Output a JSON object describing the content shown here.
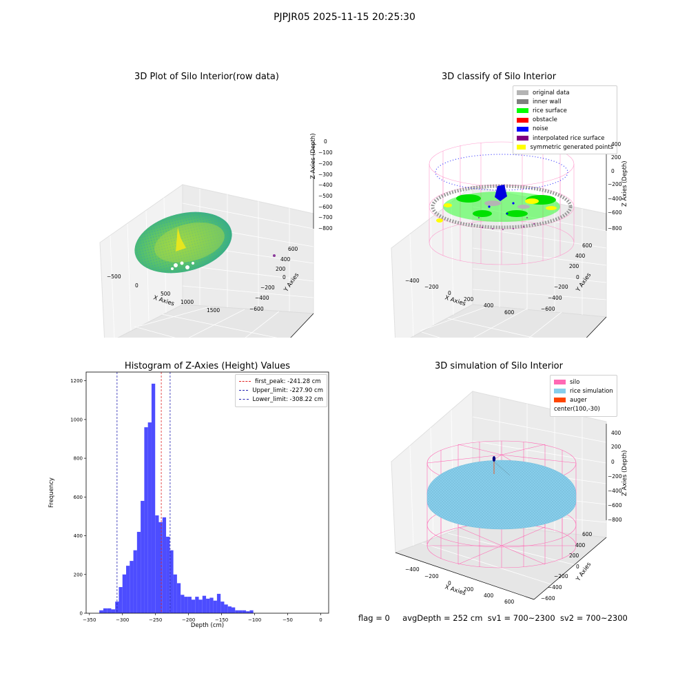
{
  "figure_title": "PJPJR05 2025-11-15 20:25:30",
  "footer": {
    "flag": "flag = 0",
    "avg_depth": "avgDepth = 252 cm",
    "sv1": "sv1 = 700~2300",
    "sv2": "sv2 = 700~2300"
  },
  "colors": {
    "histogram_bar": "#4d4dff",
    "first_peak_line": "#e02020",
    "limit_lines": "#2020b0",
    "silo": "#ff69b4",
    "rice_simulation": "#87ceeb",
    "auger": "#ff4500",
    "rice_surface": "#00ff00",
    "noise": "#0000ff"
  },
  "chart_data": [
    {
      "type": "scatter3d",
      "title": "3D Plot of Silo Interior(row data)",
      "xlabel": "X Axies",
      "ylabel": "Y Axies",
      "zlabel": "Z Axies (Depth)",
      "x_ticks": [
        "−500",
        "0",
        "500",
        "1000",
        "1500"
      ],
      "y_ticks": [
        "−600",
        "−400",
        "−200",
        "0",
        "200",
        "400",
        "600"
      ],
      "z_ticks": [
        "0",
        "−100",
        "−200",
        "−300",
        "−400",
        "−500",
        "−600",
        "−700",
        "−800"
      ]
    },
    {
      "type": "scatter3d",
      "title": "3D classify of Silo Interior",
      "xlabel": "X Axies",
      "ylabel": "Y Axies",
      "zlabel": "Z Axies (Depth)",
      "x_ticks": [
        "−400",
        "−200",
        "0",
        "200",
        "400",
        "600"
      ],
      "y_ticks": [
        "−600",
        "−400",
        "−200",
        "0",
        "200",
        "400",
        "600"
      ],
      "z_ticks": [
        "400",
        "200",
        "0",
        "−200",
        "−400",
        "−600",
        "−800"
      ],
      "legend": [
        {
          "label": "original data",
          "color": "#b4b4b4"
        },
        {
          "label": "inner wall",
          "color": "#808080"
        },
        {
          "label": "rice surface",
          "color": "#00ff00"
        },
        {
          "label": "obstacle",
          "color": "#ff0000"
        },
        {
          "label": "noise",
          "color": "#0000ff"
        },
        {
          "label": "interpolated rice surface",
          "color": "#800080"
        },
        {
          "label": "symmetric generated points",
          "color": "#ffff00"
        }
      ]
    },
    {
      "type": "bar",
      "title": "Histogram of Z-Axies (Height) Values",
      "xlabel": "Depth (cm)",
      "ylabel": "Frequency",
      "xlim": [
        -350,
        0
      ],
      "ylim": [
        0,
        1250
      ],
      "x_ticks": [
        -350,
        -300,
        -250,
        -200,
        -150,
        -100,
        -50,
        0
      ],
      "x_tick_labels": [
        "−350",
        "−300",
        "−250",
        "−200",
        "−150",
        "−100",
        "−50",
        "0"
      ],
      "y_ticks": [
        0,
        200,
        400,
        600,
        800,
        1000,
        1200
      ],
      "bins": [
        {
          "x0": -335.0,
          "x1": -329.0,
          "v": 15
        },
        {
          "x0": -329.0,
          "x1": -323.0,
          "v": 25
        },
        {
          "x0": -323.0,
          "x1": -317.0,
          "v": 25
        },
        {
          "x0": -317.0,
          "x1": -311.0,
          "v": 20
        },
        {
          "x0": -311.0,
          "x1": -305.5,
          "v": 60
        },
        {
          "x0": -305.5,
          "x1": -300.0,
          "v": 135
        },
        {
          "x0": -300.0,
          "x1": -294.5,
          "v": 200
        },
        {
          "x0": -294.5,
          "x1": -289.0,
          "v": 245
        },
        {
          "x0": -289.0,
          "x1": -283.5,
          "v": 270
        },
        {
          "x0": -283.5,
          "x1": -278.0,
          "v": 325
        },
        {
          "x0": -278.0,
          "x1": -272.5,
          "v": 420
        },
        {
          "x0": -272.5,
          "x1": -267.0,
          "v": 580
        },
        {
          "x0": -267.0,
          "x1": -261.5,
          "v": 960
        },
        {
          "x0": -261.5,
          "x1": -256.0,
          "v": 985
        },
        {
          "x0": -256.0,
          "x1": -250.5,
          "v": 1185
        },
        {
          "x0": -250.5,
          "x1": -245.0,
          "v": 505
        },
        {
          "x0": -245.0,
          "x1": -239.5,
          "v": 470
        },
        {
          "x0": -239.5,
          "x1": -234.0,
          "v": 495
        },
        {
          "x0": -234.0,
          "x1": -228.5,
          "v": 395
        },
        {
          "x0": -228.5,
          "x1": -223.0,
          "v": 325
        },
        {
          "x0": -223.0,
          "x1": -217.5,
          "v": 200
        },
        {
          "x0": -217.5,
          "x1": -212.0,
          "v": 155
        },
        {
          "x0": -212.0,
          "x1": -206.5,
          "v": 95
        },
        {
          "x0": -206.5,
          "x1": -201.0,
          "v": 85
        },
        {
          "x0": -201.0,
          "x1": -195.5,
          "v": 85
        },
        {
          "x0": -195.5,
          "x1": -190.0,
          "v": 70
        },
        {
          "x0": -190.0,
          "x1": -184.5,
          "v": 85
        },
        {
          "x0": -184.5,
          "x1": -179.0,
          "v": 70
        },
        {
          "x0": -179.0,
          "x1": -173.5,
          "v": 90
        },
        {
          "x0": -173.5,
          "x1": -168.0,
          "v": 75
        },
        {
          "x0": -168.0,
          "x1": -162.5,
          "v": 80
        },
        {
          "x0": -162.5,
          "x1": -157.0,
          "v": 65
        },
        {
          "x0": -157.0,
          "x1": -151.5,
          "v": 100
        },
        {
          "x0": -151.5,
          "x1": -146.0,
          "v": 60
        },
        {
          "x0": -146.0,
          "x1": -140.5,
          "v": 45
        },
        {
          "x0": -140.5,
          "x1": -135.0,
          "v": 35
        },
        {
          "x0": -135.0,
          "x1": -129.5,
          "v": 30
        },
        {
          "x0": -129.5,
          "x1": -124.0,
          "v": 15
        },
        {
          "x0": -124.0,
          "x1": -118.5,
          "v": 15
        },
        {
          "x0": -118.5,
          "x1": -113.0,
          "v": 15
        },
        {
          "x0": -113.0,
          "x1": -107.5,
          "v": 10
        },
        {
          "x0": -107.5,
          "x1": -102.0,
          "v": 15
        }
      ],
      "reference_lines": [
        {
          "name": "first_peak",
          "label": "first_peak: -241.28 cm",
          "x": -241.28,
          "color": "#e02020"
        },
        {
          "name": "upper_limit",
          "label": "Upper_limit: -227.90 cm",
          "x": -227.9,
          "color": "#2020b0"
        },
        {
          "name": "lower_limit",
          "label": "Lower_limit: -308.22 cm",
          "x": -308.22,
          "color": "#2020b0"
        }
      ],
      "legend_position": "top-right"
    },
    {
      "type": "surface3d",
      "title": "3D simulation of Silo Interior",
      "xlabel": "X Axies",
      "ylabel": "Y Axies",
      "zlabel": "Z Axies (Depth)",
      "x_ticks": [
        "−400",
        "−200",
        "0",
        "200",
        "400",
        "600"
      ],
      "y_ticks": [
        "−600",
        "−400",
        "−200",
        "0",
        "200",
        "400",
        "600"
      ],
      "z_ticks": [
        "400",
        "200",
        "0",
        "−200",
        "−400",
        "−600",
        "−800"
      ],
      "legend": [
        {
          "label": "silo",
          "color": "#ff69b4"
        },
        {
          "label": "rice simulation",
          "color": "#87ceeb"
        },
        {
          "label": "auger",
          "color": "#ff4500"
        },
        {
          "label": "center(100,-30)",
          "color": ""
        }
      ]
    }
  ]
}
